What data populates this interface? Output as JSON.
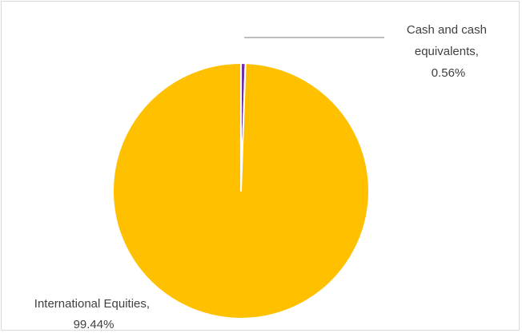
{
  "chart_data": {
    "type": "pie",
    "slices": [
      {
        "name": "Cash and cash equivalents",
        "value": 0.56,
        "value_label": "0.56%",
        "color": "#7030a0"
      },
      {
        "name": "International Equities",
        "value": 99.44,
        "value_label": "99.44%",
        "color": "#ffc000"
      }
    ],
    "data_labels": {
      "cash": {
        "lines": [
          "Cash and cash",
          "equivalents,",
          "0.56%"
        ]
      },
      "equities": {
        "lines": [
          "International Equities,",
          "99.44%"
        ]
      }
    },
    "slice_border_color": "#ffffff",
    "leader_line_color": "#7f7f7f",
    "legend": "none"
  }
}
